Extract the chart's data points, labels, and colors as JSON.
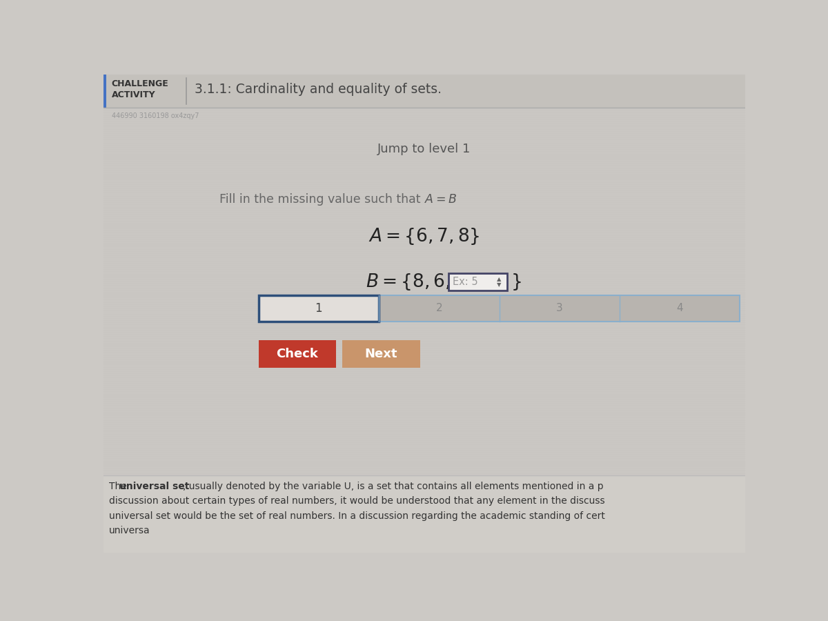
{
  "bg_color": "#ccc9c5",
  "header_bg": "#c4c1bc",
  "header_line_color": "#4472c4",
  "challenge_text1": "CHALLENGE",
  "challenge_text2": "ACTIVITY",
  "title_text": "3.1.1: Cardinality and equality of sets.",
  "subtitle_id": "446990 3160198 ox4zqy7",
  "jump_text": "Jump to level 1",
  "instruction_normal": "Fill in the missing value such that ",
  "instruction_italic_A": "A",
  "instruction_eq": " = ",
  "instruction_italic_B": "B",
  "set_A_text": "A = {6, 7, 8}",
  "set_B_prefix": "B = {8, 6,",
  "set_B_input": "Ex: 5",
  "set_B_suffix": "}",
  "progress_labels": [
    "1",
    "2",
    "3",
    "4"
  ],
  "check_btn_color": "#c0392b",
  "next_btn_color": "#c9956b",
  "check_text": "Check",
  "next_text": "Next",
  "footer_line1_pre": "The ",
  "footer_line1_bold": "universal set",
  "footer_line1_post": ", usually denoted by the variable U, is a set that contains all elements mentioned in a p",
  "footer_line2": "discussion about certain types of real numbers, it would be understood that any element in the discuss",
  "footer_line3": "universal set would be the set of real numbers. In a discussion regarding the academic standing of cert",
  "footer_line4": "universa",
  "content_bg": "#ccc9c5",
  "footer_bg": "#d0cdc8",
  "prog_active_color": "#e2deda",
  "prog_inactive_color": "#b8b4af",
  "prog_border_active": "#2d4f7a",
  "prog_border_inactive": "#8aafcc"
}
